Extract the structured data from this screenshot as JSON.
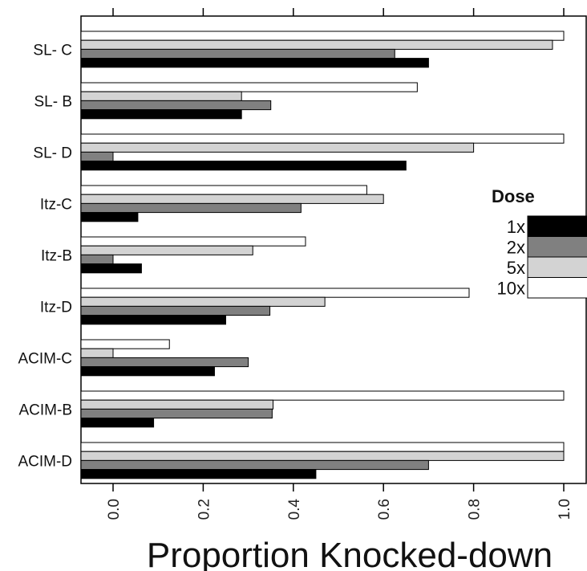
{
  "chart_data": {
    "type": "bar",
    "orientation": "horizontal",
    "categories": [
      "SL- C",
      "SL- B",
      "SL- D",
      "Itz-C",
      "Itz-B",
      "Itz-D",
      "ACIM-C",
      "ACIM-B",
      "ACIM-D"
    ],
    "series": [
      {
        "name": "1x",
        "color": "#000000",
        "values": [
          0.7,
          0.285,
          0.65,
          0.055,
          0.063,
          0.25,
          0.225,
          0.09,
          0.45
        ]
      },
      {
        "name": "2x",
        "color": "#808080",
        "values": [
          0.625,
          0.35,
          0.0,
          0.417,
          0.0,
          0.348,
          0.3,
          0.353,
          0.7
        ]
      },
      {
        "name": "5x",
        "color": "#d3d3d3",
        "values": [
          0.975,
          0.285,
          0.8,
          0.6,
          0.31,
          0.47,
          0.0,
          0.355,
          1.0
        ]
      },
      {
        "name": "10x",
        "color": "#ffffff",
        "values": [
          1.0,
          0.675,
          1.0,
          0.563,
          0.427,
          0.79,
          0.125,
          1.0,
          1.0
        ]
      }
    ],
    "xlabel": "Proportion Knocked-down",
    "xlim": [
      0,
      1
    ],
    "xticks": [
      "0.0",
      "0.2",
      "0.4",
      "0.6",
      "0.8",
      "1.0"
    ],
    "grid": false,
    "legend": {
      "title": "Dose",
      "placement": "right"
    }
  }
}
